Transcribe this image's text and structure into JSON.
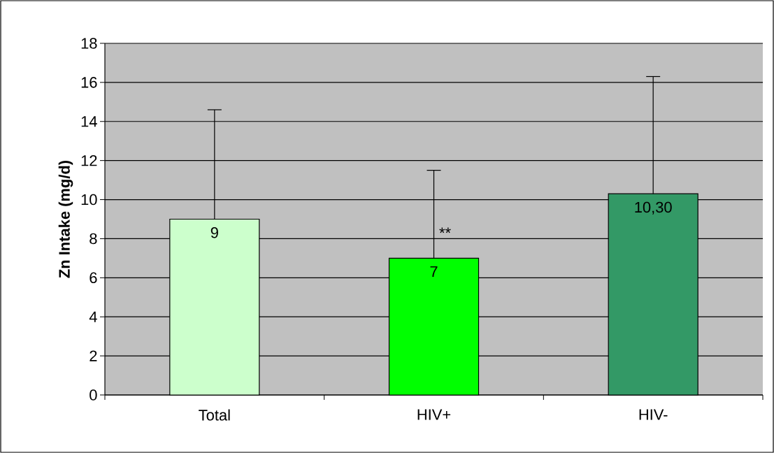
{
  "chart_data": {
    "type": "bar",
    "ylabel": "Zn Intake (mg/d)",
    "categories": [
      "Total",
      "HIV+",
      "HIV-"
    ],
    "values": [
      9,
      7,
      10.3
    ],
    "colors": [
      "#ccffcc",
      "#00ff00",
      "#339966"
    ],
    "errors": [
      5.6,
      4.5,
      6.0
    ],
    "value_labels": [
      "9",
      "7",
      "10,30"
    ],
    "annotations": [
      {
        "text": "**",
        "x": "HIV+",
        "y": 8.3
      }
    ],
    "ylim": [
      0,
      18
    ],
    "yticks": [
      0,
      2,
      4,
      6,
      8,
      10,
      12,
      14,
      16,
      18
    ],
    "grid": "y"
  }
}
